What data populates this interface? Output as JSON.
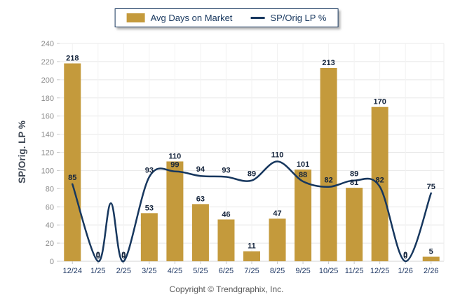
{
  "chart_data": {
    "type": "bar",
    "title": "",
    "categories": [
      "12/24",
      "1/25",
      "2/25",
      "3/25",
      "4/25",
      "5/25",
      "6/25",
      "7/25",
      "8/25",
      "9/25",
      "10/25",
      "11/25",
      "12/25",
      "1/26",
      "2/26"
    ],
    "series": [
      {
        "name": "Avg Days on Market",
        "type": "bar",
        "color": "#C49A3C",
        "values": [
          218,
          0,
          0,
          53,
          110,
          63,
          46,
          11,
          47,
          101,
          213,
          81,
          170,
          0,
          5
        ]
      },
      {
        "name": "SP/Orig LP %",
        "type": "line",
        "color": "#17375E",
        "values": [
          85,
          0,
          0,
          93,
          99,
          94,
          93,
          89,
          110,
          88,
          82,
          89,
          82,
          0,
          75
        ]
      }
    ],
    "xlabel": "",
    "ylabel": "SP/Orig. LP %",
    "ylim": [
      0,
      240
    ],
    "ytick_step": 20,
    "grid": true,
    "legend_position": "top",
    "data_labels": true
  },
  "colors": {
    "bar": "#C49A3C",
    "line": "#17375E",
    "data_label": "#14243C",
    "x_tick_label": "#1F3864",
    "y_tick_label": "#8C8C8C",
    "grid_line": "#E8E8E8",
    "axis_line": "#D6D6D6",
    "axis_title": "#3D4653"
  },
  "footer": {
    "copyright": "Copyright © Trendgraphix, Inc."
  }
}
